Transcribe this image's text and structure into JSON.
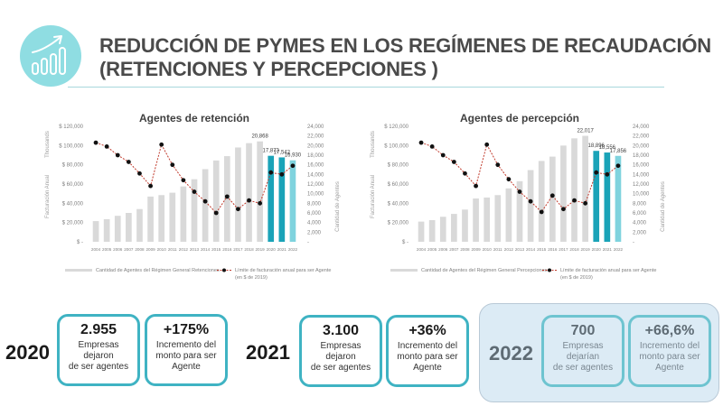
{
  "header": {
    "title_line1": "REDUCCIÓN DE PYMES EN LOS REGÍMENES DE RECAUDACIÓN",
    "title_line2": "(RETENCIONES Y PERCEPCIONES )",
    "logo_icon": "growth-chart-icon",
    "accent_color": "#8fdde2"
  },
  "chart_data": [
    {
      "type": "bar",
      "title": "Agentes de retención",
      "categories": [
        "2004",
        "2005",
        "2006",
        "2007",
        "2008",
        "2009",
        "2010",
        "2011",
        "2012",
        "2013",
        "2014",
        "2015",
        "2016",
        "2017",
        "2018",
        "2019",
        "2020",
        "2021",
        "2022"
      ],
      "series": [
        {
          "name": "Cantidad de Agentes del Régimen General Retenciones",
          "type": "bar",
          "axis": "right",
          "values": [
            4300,
            4700,
            5400,
            6000,
            6800,
            9400,
            9700,
            10200,
            11500,
            13000,
            15100,
            16900,
            17800,
            19600,
            20500,
            20868,
            17873,
            17542,
            16930
          ],
          "colors": {
            "default": "#d9d9d9",
            "2020": "#1aa3b8",
            "2021": "#1aa3b8",
            "2022": "#7fd3de"
          }
        },
        {
          "name": "Límite de facturación anual para ser Agente (en $ de 2019)",
          "type": "line",
          "axis": "left",
          "values": [
            103000,
            99000,
            90000,
            83000,
            71000,
            58000,
            101000,
            80000,
            64000,
            52000,
            42000,
            30000,
            47000,
            34000,
            43000,
            40000,
            72000,
            70000,
            79000
          ],
          "color": "#c0392b"
        }
      ],
      "data_labels": {
        "2019": "20,868",
        "2020": "17,873",
        "2021": "17,542",
        "2022": "16,930"
      },
      "left_axis": {
        "label": "Facturación Anual",
        "unit_label": "Thousands",
        "ylim": [
          0,
          120000
        ],
        "ticks": [
          "$ -",
          "$ 20,000",
          "$ 40,000",
          "$ 60,000",
          "$ 80,000",
          "$ 100,000",
          "$ 120,000"
        ]
      },
      "right_axis": {
        "label": "Cantidad de Agentes",
        "ylim": [
          0,
          24000
        ],
        "ticks": [
          "-",
          "2,000",
          "4,000",
          "6,000",
          "8,000",
          "10,000",
          "12,000",
          "14,000",
          "16,000",
          "18,000",
          "20,000",
          "22,000",
          "24,000"
        ]
      },
      "x_tick_labels": [
        "2004",
        "2005",
        "2006",
        "2007",
        "2008",
        "2009",
        "2010",
        "2011",
        "2012",
        "2013",
        "2014",
        "2015",
        "2016",
        "2017",
        "2018",
        "2019",
        "2020",
        "2021",
        "2022"
      ],
      "legend": [
        "Cantidad de Agentes del Régimen General Retenciones",
        "Límite de facturación anual para ser Agente",
        "(en $ de 2019)"
      ],
      "legend_position": "bottom",
      "grid": false
    },
    {
      "type": "bar",
      "title": "Agentes de percepción",
      "categories": [
        "2004",
        "2005",
        "2006",
        "2007",
        "2008",
        "2009",
        "2010",
        "2011",
        "2012",
        "2013",
        "2014",
        "2015",
        "2016",
        "2017",
        "2018",
        "2019",
        "2020",
        "2021",
        "2022"
      ],
      "series": [
        {
          "name": "Cantidad de Agentes del Régimen General Percepciones",
          "type": "bar",
          "axis": "right",
          "values": [
            4200,
            4500,
            5200,
            5800,
            6700,
            9000,
            9200,
            9700,
            11100,
            12600,
            14900,
            16800,
            17700,
            20000,
            21500,
            22017,
            18896,
            18556,
            17856
          ],
          "colors": {
            "default": "#d9d9d9",
            "2020": "#1aa3b8",
            "2021": "#1aa3b8",
            "2022": "#7fd3de"
          }
        },
        {
          "name": "Límite de facturación anual para ser Agente (en $ de 2019)",
          "type": "line",
          "axis": "left",
          "values": [
            103000,
            99000,
            90000,
            83000,
            71000,
            58000,
            101000,
            80000,
            65000,
            52000,
            42000,
            31000,
            48000,
            34000,
            43000,
            40000,
            72000,
            70000,
            79000
          ],
          "color": "#c0392b"
        }
      ],
      "data_labels": {
        "2019": "22,017",
        "2020": "18,896",
        "2021": "18,556",
        "2022": "17,856"
      },
      "left_axis": {
        "label": "Facturación Anual",
        "unit_label": "Thousands",
        "ylim": [
          0,
          120000
        ],
        "ticks": [
          "$ -",
          "$ 20,000",
          "$ 40,000",
          "$ 60,000",
          "$ 80,000",
          "$ 100,000",
          "$ 120,000"
        ]
      },
      "right_axis": {
        "label": "Cantidad de Agentes",
        "ylim": [
          0,
          24000
        ],
        "ticks": [
          "-",
          "2,000",
          "4,000",
          "6,000",
          "8,000",
          "10,000",
          "12,000",
          "14,000",
          "16,000",
          "18,000",
          "20,000",
          "22,000",
          "24,000"
        ]
      },
      "x_tick_labels": [
        "2004",
        "2005",
        "2006",
        "2007",
        "2008",
        "2009",
        "2010",
        "2011",
        "2012",
        "2013",
        "2014",
        "2015",
        "2016",
        "2017",
        "2018",
        "2019",
        "2020",
        "2021",
        "2022"
      ],
      "legend": [
        "Cantidad de Agentes del Régimen General Percepciones",
        "Límite de facturación anual para ser Agente",
        "(en $ de 2019)"
      ],
      "legend_position": "bottom",
      "grid": false
    }
  ],
  "summary": [
    {
      "year": "2020",
      "companies_value": "2.955",
      "companies_label_1": "Empresas dejaron",
      "companies_label_2": "de ser agentes",
      "increase_value": "+175%",
      "increase_label_1": "Incremento del",
      "increase_label_2": "monto para ser",
      "increase_label_3": "Agente"
    },
    {
      "year": "2021",
      "companies_value": "3.100",
      "companies_label_1": "Empresas dejaron",
      "companies_label_2": "de ser agentes",
      "increase_value": "+36%",
      "increase_label_1": "Incremento del",
      "increase_label_2": "monto para ser",
      "increase_label_3": "Agente"
    },
    {
      "year": "2022",
      "companies_value": "700",
      "companies_label_1": "Empresas dejarían",
      "companies_label_2": "de ser agentes",
      "increase_value": "+66,6%",
      "increase_label_1": "Incremento del",
      "increase_label_2": "monto para ser",
      "increase_label_3": "Agente"
    }
  ],
  "colors": {
    "card_border": "#3fb3c3",
    "panel_2022_bg": "#dcebf5",
    "highlight_bar": "#1aa3b8",
    "projected_bar": "#7fd3de",
    "line": "#c0392b"
  }
}
